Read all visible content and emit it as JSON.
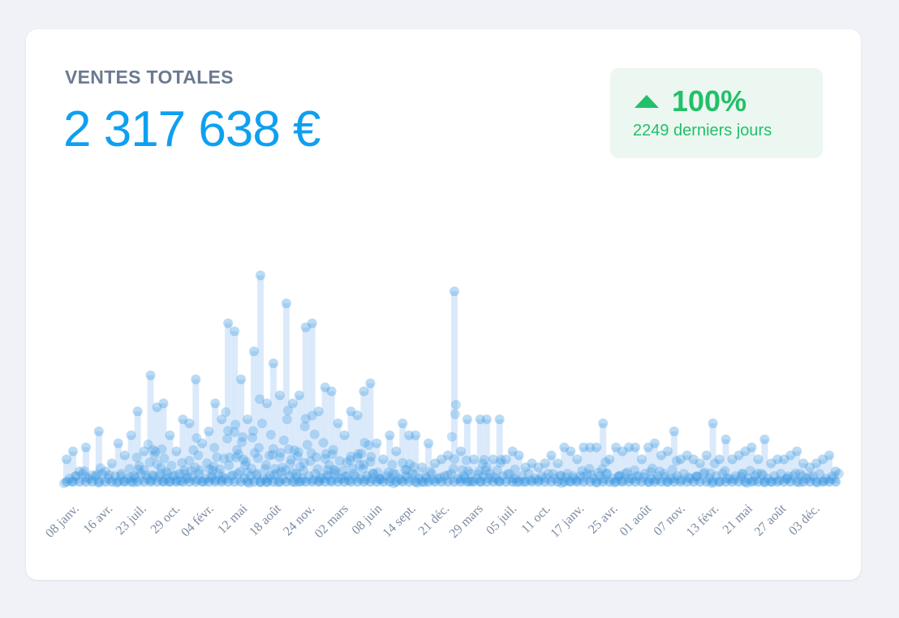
{
  "card": {
    "title": "VENTES TOTALES",
    "total": "2 317 638 €",
    "change": {
      "percent": "100%",
      "period": "2249 derniers jours",
      "direction": "up",
      "color": "#22c06a"
    }
  },
  "chart_data": {
    "type": "scatter",
    "title": "",
    "xlabel": "",
    "ylabel": "",
    "ylim": [
      0,
      30000
    ],
    "grid": false,
    "color": "#3b97e0",
    "x_tick_labels": [
      "08 janv.",
      "16 avr.",
      "23 juil.",
      "29 oct.",
      "04 févr.",
      "12 mai",
      "18 août",
      "24 nov.",
      "02 mars",
      "08 juin",
      "14 sept.",
      "21 déc.",
      "29 mars",
      "05 juil.",
      "11 oct.",
      "17 janv.",
      "25 avr.",
      "01 août",
      "07 nov.",
      "13 févr.",
      "21 mai",
      "27 août",
      "03 déc."
    ],
    "values": [
      3000,
      4000,
      1500,
      4500,
      1000,
      6500,
      1500,
      2500,
      5000,
      3500,
      6000,
      9000,
      4000,
      13500,
      9500,
      10000,
      6000,
      4000,
      8000,
      7500,
      13000,
      5000,
      6500,
      10000,
      8000,
      20000,
      19000,
      13000,
      8000,
      16500,
      26000,
      10000,
      15000,
      11000,
      22500,
      10000,
      11000,
      19500,
      20000,
      9000,
      12000,
      11500,
      7500,
      6000,
      9000,
      8500,
      11500,
      12500,
      5000,
      3000,
      6000,
      4000,
      7500,
      6000,
      6000,
      2000,
      5000,
      2500,
      3000,
      3500,
      24000,
      4000,
      8000,
      3000,
      8000,
      8000,
      3000,
      8000,
      3000,
      4000,
      3500,
      2000,
      2500,
      2000,
      2500,
      3500,
      2500,
      4500,
      4000,
      3000,
      4500,
      4500,
      4500,
      7500,
      3000,
      4500,
      4000,
      4500,
      4500,
      3000,
      4500,
      5000,
      3500,
      4000,
      6500,
      3000,
      3500,
      3000,
      2500,
      3500,
      7500,
      3000,
      5500,
      3000,
      3500,
      4000,
      4500,
      3000,
      5500,
      2500,
      3000,
      3000,
      3500,
      4000,
      2500,
      2000,
      2500,
      3000,
      3500,
      1500
    ]
  }
}
